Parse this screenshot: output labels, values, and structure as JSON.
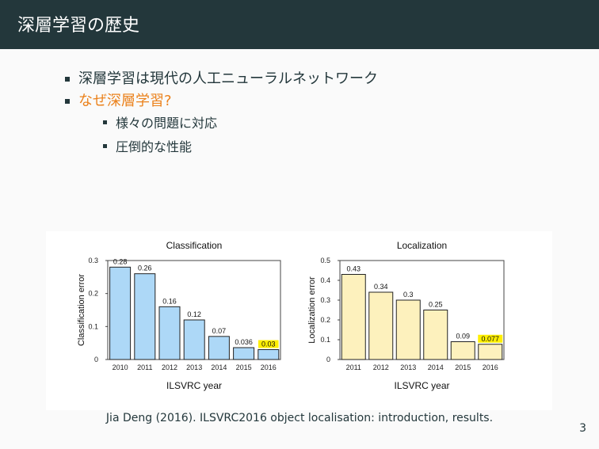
{
  "slide": {
    "title": "深層学習の歴史",
    "bullets": [
      {
        "text": "深層学習は現代の人工ニューラルネットワーク",
        "level": 1,
        "accent": false
      },
      {
        "text": "なぜ深層学習?",
        "level": 1,
        "accent": true
      },
      {
        "text": "様々の問題に対応",
        "level": 2,
        "accent": false
      },
      {
        "text": "圧倒的な性能",
        "level": 2,
        "accent": false
      }
    ],
    "caption": "Jia Deng (2016). ILSVRC2016 object localisation: introduction, results.",
    "page_number": "3",
    "colors": {
      "header_bg": "#23373b",
      "accent": "#eb811b"
    }
  },
  "chart_data": [
    {
      "type": "bar",
      "title": "Classification",
      "xlabel": "ILSVRC year",
      "ylabel": "Classification error",
      "categories": [
        "2010",
        "2011",
        "2012",
        "2013",
        "2014",
        "2015",
        "2016"
      ],
      "values": [
        0.28,
        0.26,
        0.16,
        0.12,
        0.07,
        0.036,
        0.03
      ],
      "value_labels": [
        "0.28",
        "0.26",
        "0.16",
        "0.12",
        "0.07",
        "0.036",
        "0.03"
      ],
      "ylim": [
        0,
        0.3
      ],
      "yticks": [
        "0",
        "0.1",
        "0.2",
        "0.3"
      ],
      "highlight_index": 6,
      "bar_color": "#add8f7",
      "highlight_label_bg": "#ffef00",
      "grid": false
    },
    {
      "type": "bar",
      "title": "Localization",
      "xlabel": "ILSVRC year",
      "ylabel": "Localization error",
      "categories": [
        "2011",
        "2012",
        "2013",
        "2014",
        "2015",
        "2016"
      ],
      "values": [
        0.43,
        0.34,
        0.3,
        0.25,
        0.09,
        0.077
      ],
      "value_labels": [
        "0.43",
        "0.34",
        "0.3",
        "0.25",
        "0.09",
        "0.077"
      ],
      "ylim": [
        0,
        0.5
      ],
      "yticks": [
        "0",
        "0.1",
        "0.2",
        "0.3",
        "0.4",
        "0.5"
      ],
      "highlight_index": 5,
      "bar_color": "#fdf1bd",
      "highlight_label_bg": "#ffef00",
      "grid": false
    }
  ]
}
